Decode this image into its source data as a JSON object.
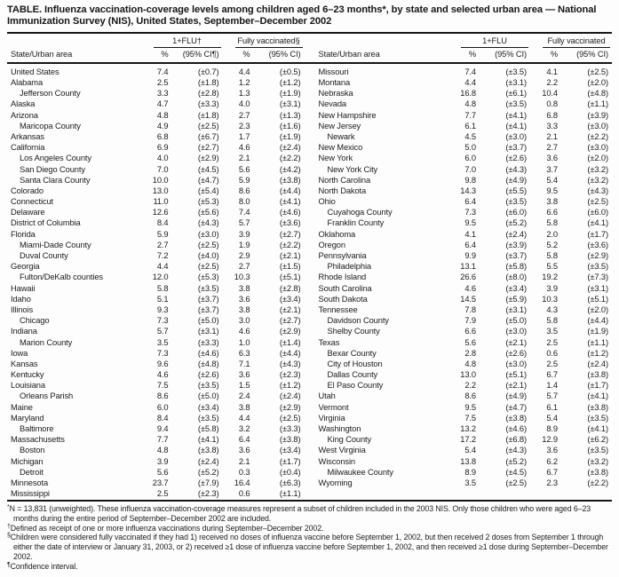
{
  "title": "TABLE. Influenza vaccination-coverage levels among children aged 6–23 months*, by state and selected urban area — National Immunization Survey (NIS), United States, September–December 2002",
  "left": {
    "header": {
      "group1": "1+FLU†",
      "group2": "Fully vaccinated§",
      "state": "State/Urban area",
      "pct1": "%",
      "ci1": "(95% CI¶)",
      "pct2": "%",
      "ci2": "(95% CI)"
    },
    "rows": [
      {
        "name": "United States",
        "indent": false,
        "flu_pct": "7.4",
        "flu_ci": "(±0.7)",
        "full_pct": "4.4",
        "full_ci": "(±0.5)"
      },
      {
        "name": "Alabama",
        "indent": false,
        "flu_pct": "2.5",
        "flu_ci": "(±1.8)",
        "full_pct": "1.2",
        "full_ci": "(±1.2)"
      },
      {
        "name": "Jefferson County",
        "indent": true,
        "flu_pct": "3.3",
        "flu_ci": "(±2.8)",
        "full_pct": "1.3",
        "full_ci": "(±1.9)"
      },
      {
        "name": "Alaska",
        "indent": false,
        "flu_pct": "4.7",
        "flu_ci": "(±3.3)",
        "full_pct": "4.0",
        "full_ci": "(±3.1)"
      },
      {
        "name": "Arizona",
        "indent": false,
        "flu_pct": "4.8",
        "flu_ci": "(±1.8)",
        "full_pct": "2.7",
        "full_ci": "(±1.3)"
      },
      {
        "name": "Maricopa County",
        "indent": true,
        "flu_pct": "4.9",
        "flu_ci": "(±2.5)",
        "full_pct": "2.3",
        "full_ci": "(±1.6)"
      },
      {
        "name": "Arkansas",
        "indent": false,
        "flu_pct": "6.8",
        "flu_ci": "(±6.7)",
        "full_pct": "1.7",
        "full_ci": "(±1.9)"
      },
      {
        "name": "California",
        "indent": false,
        "flu_pct": "6.9",
        "flu_ci": "(±2.7)",
        "full_pct": "4.6",
        "full_ci": "(±2.4)"
      },
      {
        "name": "Los Angeles County",
        "indent": true,
        "flu_pct": "4.0",
        "flu_ci": "(±2.9)",
        "full_pct": "2.1",
        "full_ci": "(±2.2)"
      },
      {
        "name": "San Diego County",
        "indent": true,
        "flu_pct": "7.0",
        "flu_ci": "(±4.5)",
        "full_pct": "5.6",
        "full_ci": "(±4.2)"
      },
      {
        "name": "Santa Clara County",
        "indent": true,
        "flu_pct": "10.0",
        "flu_ci": "(±4.7)",
        "full_pct": "5.9",
        "full_ci": "(±3.8)"
      },
      {
        "name": "Colorado",
        "indent": false,
        "flu_pct": "13.0",
        "flu_ci": "(±5.4)",
        "full_pct": "8.6",
        "full_ci": "(±4.4)"
      },
      {
        "name": "Connecticut",
        "indent": false,
        "flu_pct": "11.0",
        "flu_ci": "(±5.3)",
        "full_pct": "8.0",
        "full_ci": "(±4.1)"
      },
      {
        "name": "Delaware",
        "indent": false,
        "flu_pct": "12.6",
        "flu_ci": "(±5.6)",
        "full_pct": "7.4",
        "full_ci": "(±4.6)"
      },
      {
        "name": "District of Columbia",
        "indent": false,
        "flu_pct": "8.4",
        "flu_ci": "(±4.3)",
        "full_pct": "5.7",
        "full_ci": "(±3.6)"
      },
      {
        "name": "Florida",
        "indent": false,
        "flu_pct": "5.9",
        "flu_ci": "(±3.0)",
        "full_pct": "3.9",
        "full_ci": "(±2.7)"
      },
      {
        "name": "Miami-Dade County",
        "indent": true,
        "flu_pct": "2.7",
        "flu_ci": "(±2.5)",
        "full_pct": "1.9",
        "full_ci": "(±2.2)"
      },
      {
        "name": "Duval County",
        "indent": true,
        "flu_pct": "7.2",
        "flu_ci": "(±4.0)",
        "full_pct": "2.9",
        "full_ci": "(±2.1)"
      },
      {
        "name": "Georgia",
        "indent": false,
        "flu_pct": "4.4",
        "flu_ci": "(±2.5)",
        "full_pct": "2.7",
        "full_ci": "(±1.5)"
      },
      {
        "name": "Fulton/DeKalb counties",
        "indent": true,
        "flu_pct": "12.0",
        "flu_ci": "(±5.3)",
        "full_pct": "10.3",
        "full_ci": "(±5.1)"
      },
      {
        "name": "Hawaii",
        "indent": false,
        "flu_pct": "5.8",
        "flu_ci": "(±3.5)",
        "full_pct": "3.8",
        "full_ci": "(±2.8)"
      },
      {
        "name": "Idaho",
        "indent": false,
        "flu_pct": "5.1",
        "flu_ci": "(±3.7)",
        "full_pct": "3.6",
        "full_ci": "(±3.4)"
      },
      {
        "name": "Illinois",
        "indent": false,
        "flu_pct": "9.3",
        "flu_ci": "(±3.7)",
        "full_pct": "3.8",
        "full_ci": "(±2.1)"
      },
      {
        "name": "Chicago",
        "indent": true,
        "flu_pct": "7.3",
        "flu_ci": "(±5.0)",
        "full_pct": "3.0",
        "full_ci": "(±2.7)"
      },
      {
        "name": "Indiana",
        "indent": false,
        "flu_pct": "5.7",
        "flu_ci": "(±3.1)",
        "full_pct": "4.6",
        "full_ci": "(±2.9)"
      },
      {
        "name": "Marion County",
        "indent": true,
        "flu_pct": "3.5",
        "flu_ci": "(±3.3)",
        "full_pct": "1.0",
        "full_ci": "(±1.4)"
      },
      {
        "name": "Iowa",
        "indent": false,
        "flu_pct": "7.3",
        "flu_ci": "(±4.6)",
        "full_pct": "6.3",
        "full_ci": "(±4.4)"
      },
      {
        "name": "Kansas",
        "indent": false,
        "flu_pct": "9.6",
        "flu_ci": "(±4.8)",
        "full_pct": "7.1",
        "full_ci": "(±4.3)"
      },
      {
        "name": "Kentucky",
        "indent": false,
        "flu_pct": "4.6",
        "flu_ci": "(±2.6)",
        "full_pct": "3.6",
        "full_ci": "(±2.3)"
      },
      {
        "name": "Louisiana",
        "indent": false,
        "flu_pct": "7.5",
        "flu_ci": "(±3.5)",
        "full_pct": "1.5",
        "full_ci": "(±1.2)"
      },
      {
        "name": "Orleans Parish",
        "indent": true,
        "flu_pct": "8.6",
        "flu_ci": "(±5.0)",
        "full_pct": "2.4",
        "full_ci": "(±2.4)"
      },
      {
        "name": "Maine",
        "indent": false,
        "flu_pct": "6.0",
        "flu_ci": "(±3.4)",
        "full_pct": "3.8",
        "full_ci": "(±2.9)"
      },
      {
        "name": "Maryland",
        "indent": false,
        "flu_pct": "8.4",
        "flu_ci": "(±3.5)",
        "full_pct": "4.4",
        "full_ci": "(±2.5)"
      },
      {
        "name": "Baltimore",
        "indent": true,
        "flu_pct": "9.4",
        "flu_ci": "(±5.8)",
        "full_pct": "3.2",
        "full_ci": "(±3.3)"
      },
      {
        "name": "Massachusetts",
        "indent": false,
        "flu_pct": "7.7",
        "flu_ci": "(±4.1)",
        "full_pct": "6.4",
        "full_ci": "(±3.8)"
      },
      {
        "name": "Boston",
        "indent": true,
        "flu_pct": "4.8",
        "flu_ci": "(±3.8)",
        "full_pct": "3.6",
        "full_ci": "(±3.4)"
      },
      {
        "name": "Michigan",
        "indent": false,
        "flu_pct": "3.9",
        "flu_ci": "(±2.4)",
        "full_pct": "2.1",
        "full_ci": "(±1.7)"
      },
      {
        "name": "Detroit",
        "indent": true,
        "flu_pct": "5.6",
        "flu_ci": "(±5.2)",
        "full_pct": "0.3",
        "full_ci": "(±0.4)"
      },
      {
        "name": "Minnesota",
        "indent": false,
        "flu_pct": "23.7",
        "flu_ci": "(±7.9)",
        "full_pct": "16.4",
        "full_ci": "(±6.3)"
      },
      {
        "name": "Mississippi",
        "indent": false,
        "flu_pct": "2.5",
        "flu_ci": "(±2.3)",
        "full_pct": "0.6",
        "full_ci": "(±1.1)"
      }
    ]
  },
  "right": {
    "header": {
      "group1": "1+FLU",
      "group2": "Fully vaccinated",
      "state": "State/Urban area",
      "pct1": "%",
      "ci1": "(95% CI)",
      "pct2": "%",
      "ci2": "(95% CI)"
    },
    "rows": [
      {
        "name": "Missouri",
        "indent": false,
        "flu_pct": "7.4",
        "flu_ci": "(±3.5)",
        "full_pct": "4.1",
        "full_ci": "(±2.5)"
      },
      {
        "name": "Montana",
        "indent": false,
        "flu_pct": "4.4",
        "flu_ci": "(±3.1)",
        "full_pct": "2.2",
        "full_ci": "(±2.0)"
      },
      {
        "name": "Nebraska",
        "indent": false,
        "flu_pct": "16.8",
        "flu_ci": "(±6.1)",
        "full_pct": "10.4",
        "full_ci": "(±4.8)"
      },
      {
        "name": "Nevada",
        "indent": false,
        "flu_pct": "4.8",
        "flu_ci": "(±3.5)",
        "full_pct": "0.8",
        "full_ci": "(±1.1)"
      },
      {
        "name": "New Hampshire",
        "indent": false,
        "flu_pct": "7.7",
        "flu_ci": "(±4.1)",
        "full_pct": "6.8",
        "full_ci": "(±3.9)"
      },
      {
        "name": "New Jersey",
        "indent": false,
        "flu_pct": "6.1",
        "flu_ci": "(±4.1)",
        "full_pct": "3.3",
        "full_ci": "(±3.0)"
      },
      {
        "name": "Newark",
        "indent": true,
        "flu_pct": "4.5",
        "flu_ci": "(±3.0)",
        "full_pct": "2.1",
        "full_ci": "(±2.2)"
      },
      {
        "name": "New Mexico",
        "indent": false,
        "flu_pct": "5.0",
        "flu_ci": "(±3.7)",
        "full_pct": "2.7",
        "full_ci": "(±3.0)"
      },
      {
        "name": "New York",
        "indent": false,
        "flu_pct": "6.0",
        "flu_ci": "(±2.6)",
        "full_pct": "3.6",
        "full_ci": "(±2.0)"
      },
      {
        "name": "New York City",
        "indent": true,
        "flu_pct": "7.0",
        "flu_ci": "(±4.3)",
        "full_pct": "3.7",
        "full_ci": "(±3.2)"
      },
      {
        "name": "North Carolina",
        "indent": false,
        "flu_pct": "9.8",
        "flu_ci": "(±4.9)",
        "full_pct": "5.4",
        "full_ci": "(±3.2)"
      },
      {
        "name": "North Dakota",
        "indent": false,
        "flu_pct": "14.3",
        "flu_ci": "(±5.5)",
        "full_pct": "9.5",
        "full_ci": "(±4.3)"
      },
      {
        "name": "Ohio",
        "indent": false,
        "flu_pct": "6.4",
        "flu_ci": "(±3.5)",
        "full_pct": "3.8",
        "full_ci": "(±2.5)"
      },
      {
        "name": "Cuyahoga County",
        "indent": true,
        "flu_pct": "7.3",
        "flu_ci": "(±6.0)",
        "full_pct": "6.6",
        "full_ci": "(±6.0)"
      },
      {
        "name": "Franklin County",
        "indent": true,
        "flu_pct": "9.5",
        "flu_ci": "(±5.2)",
        "full_pct": "5.8",
        "full_ci": "(±4.1)"
      },
      {
        "name": "Oklahoma",
        "indent": false,
        "flu_pct": "4.1",
        "flu_ci": "(±2.4)",
        "full_pct": "2.0",
        "full_ci": "(±1.7)"
      },
      {
        "name": "Oregon",
        "indent": false,
        "flu_pct": "6.4",
        "flu_ci": "(±3.9)",
        "full_pct": "5.2",
        "full_ci": "(±3.6)"
      },
      {
        "name": "Pennsylvania",
        "indent": false,
        "flu_pct": "9.9",
        "flu_ci": "(±3.7)",
        "full_pct": "5.8",
        "full_ci": "(±2.9)"
      },
      {
        "name": "Philadelphia",
        "indent": true,
        "flu_pct": "13.1",
        "flu_ci": "(±5.8)",
        "full_pct": "5.5",
        "full_ci": "(±3.5)"
      },
      {
        "name": "Rhode Island",
        "indent": false,
        "flu_pct": "26.6",
        "flu_ci": "(±8.0)",
        "full_pct": "19.2",
        "full_ci": "(±7.3)"
      },
      {
        "name": "South Carolina",
        "indent": false,
        "flu_pct": "4.6",
        "flu_ci": "(±3.4)",
        "full_pct": "3.9",
        "full_ci": "(±3.1)"
      },
      {
        "name": "South Dakota",
        "indent": false,
        "flu_pct": "14.5",
        "flu_ci": "(±5.9)",
        "full_pct": "10.3",
        "full_ci": "(±5.1)"
      },
      {
        "name": "Tennessee",
        "indent": false,
        "flu_pct": "7.8",
        "flu_ci": "(±3.1)",
        "full_pct": "4.3",
        "full_ci": "(±2.0)"
      },
      {
        "name": "Davidson County",
        "indent": true,
        "flu_pct": "7.9",
        "flu_ci": "(±5.0)",
        "full_pct": "5.8",
        "full_ci": "(±4.4)"
      },
      {
        "name": "Shelby County",
        "indent": true,
        "flu_pct": "6.6",
        "flu_ci": "(±3.0)",
        "full_pct": "3.5",
        "full_ci": "(±1.9)"
      },
      {
        "name": "Texas",
        "indent": false,
        "flu_pct": "5.6",
        "flu_ci": "(±2.1)",
        "full_pct": "2.5",
        "full_ci": "(±1.1)"
      },
      {
        "name": "Bexar County",
        "indent": true,
        "flu_pct": "2.8",
        "flu_ci": "(±2.6)",
        "full_pct": "0.6",
        "full_ci": "(±1.2)"
      },
      {
        "name": "City of Houston",
        "indent": true,
        "flu_pct": "4.8",
        "flu_ci": "(±3.0)",
        "full_pct": "2.5",
        "full_ci": "(±2.4)"
      },
      {
        "name": "Dallas County",
        "indent": true,
        "flu_pct": "13.0",
        "flu_ci": "(±5.1)",
        "full_pct": "6.7",
        "full_ci": "(±3.8)"
      },
      {
        "name": "El Paso County",
        "indent": true,
        "flu_pct": "2.2",
        "flu_ci": "(±2.1)",
        "full_pct": "1.4",
        "full_ci": "(±1.7)"
      },
      {
        "name": "Utah",
        "indent": false,
        "flu_pct": "8.6",
        "flu_ci": "(±4.9)",
        "full_pct": "5.7",
        "full_ci": "(±4.1)"
      },
      {
        "name": "Vermont",
        "indent": false,
        "flu_pct": "9.5",
        "flu_ci": "(±4.7)",
        "full_pct": "6.1",
        "full_ci": "(±3.8)"
      },
      {
        "name": "Virginia",
        "indent": false,
        "flu_pct": "7.5",
        "flu_ci": "(±3.8)",
        "full_pct": "5.4",
        "full_ci": "(±3.5)"
      },
      {
        "name": "Washington",
        "indent": false,
        "flu_pct": "13.2",
        "flu_ci": "(±4.6)",
        "full_pct": "8.9",
        "full_ci": "(±4.1)"
      },
      {
        "name": "King County",
        "indent": true,
        "flu_pct": "17.2",
        "flu_ci": "(±6.8)",
        "full_pct": "12.9",
        "full_ci": "(±6.2)"
      },
      {
        "name": "West Virginia",
        "indent": false,
        "flu_pct": "5.4",
        "flu_ci": "(±4.3)",
        "full_pct": "3.6",
        "full_ci": "(±3.5)"
      },
      {
        "name": "Wisconsin",
        "indent": false,
        "flu_pct": "13.8",
        "flu_ci": "(±5.2)",
        "full_pct": "6.2",
        "full_ci": "(±3.2)"
      },
      {
        "name": "Milwaukee County",
        "indent": true,
        "flu_pct": "8.9",
        "flu_ci": "(±4.5)",
        "full_pct": "6.7",
        "full_ci": "(±3.8)"
      },
      {
        "name": "Wyoming",
        "indent": false,
        "flu_pct": "3.5",
        "flu_ci": "(±2.5)",
        "full_pct": "2.3",
        "full_ci": "(±2.2)"
      }
    ]
  },
  "footnotes": [
    {
      "marker": "*",
      "text": "N = 13,831 (unweighted). These influenza vaccination-coverage measures represent a subset of children included in the 2003 NIS. Only those children who were aged 6–23 months during the entire period of September–December 2002 are included."
    },
    {
      "marker": "†",
      "text": "Defined as receipt of one or more influenza vaccinations during September–December 2002."
    },
    {
      "marker": "§",
      "text": "Children were considered fully vaccinated if they had 1) received no doses of influenza vaccine before September 1, 2002, but then received 2 doses from September 1 through either the date of interview or January 31, 2003, or 2) received ≥1 dose of influenza vaccine before September 1, 2002, and then received ≥1 dose during September–December 2002."
    },
    {
      "marker": "¶",
      "text": "Confidence interval."
    }
  ]
}
